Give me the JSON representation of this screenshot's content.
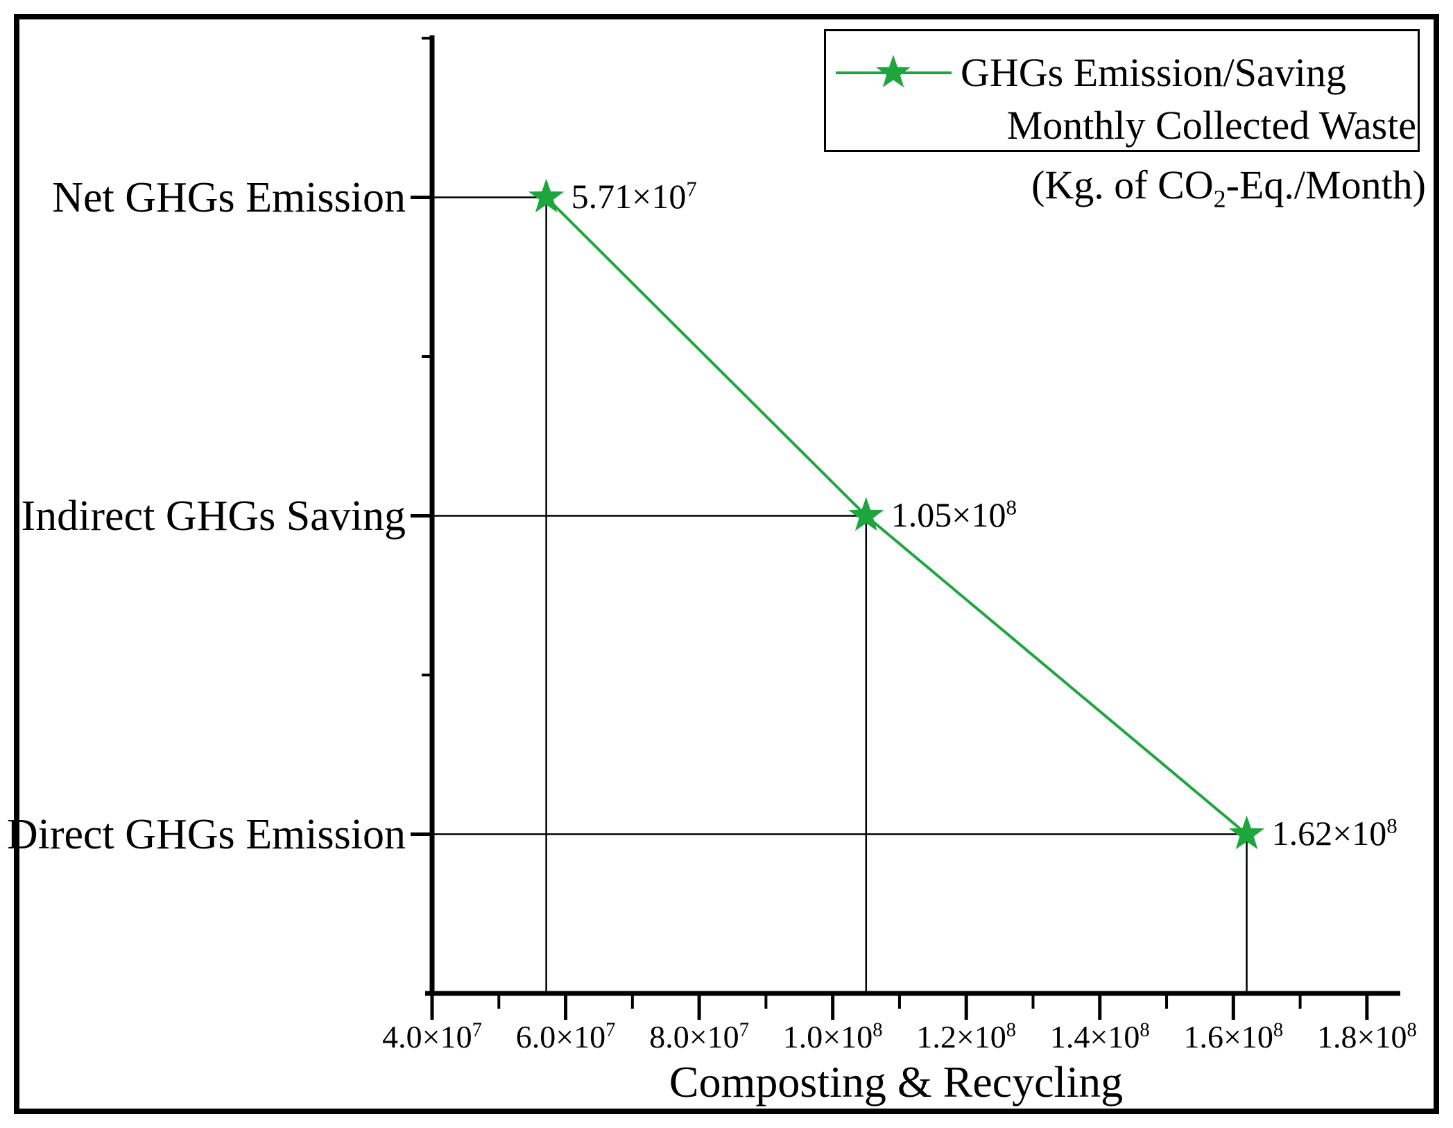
{
  "figure": {
    "background": "#ffffff",
    "border_color": "#000000"
  },
  "colors": {
    "series_green": "#1EA63E",
    "axis_black": "#000000"
  },
  "legend": {
    "line1": "GHGs Emission/Saving",
    "line2": "Monthly Collected Waste",
    "line3_pre": "(Kg. of CO",
    "line3_sub": "2",
    "line3_post": "-Eq./Month)",
    "marker_icon": "green-star-with-line"
  },
  "chart_data": {
    "type": "scatter",
    "title": "",
    "x_axis": {
      "title": "Composting & Recycling",
      "min": 40000000,
      "max": 185000000,
      "major_ticks": [
        {
          "value": 40000000,
          "label": "4.0×10^7"
        },
        {
          "value": 60000000,
          "label": "6.0×10^7"
        },
        {
          "value": 80000000,
          "label": "8.0×10^7"
        },
        {
          "value": 100000000,
          "label": "1.0×10^8"
        },
        {
          "value": 120000000,
          "label": "1.2×10^8"
        },
        {
          "value": 140000000,
          "label": "1.4×10^8"
        },
        {
          "value": 160000000,
          "label": "1.6×10^8"
        },
        {
          "value": 180000000,
          "label": "1.8×10^8"
        }
      ],
      "minor_tick_values": [
        50000000,
        70000000,
        90000000,
        110000000,
        130000000,
        150000000,
        170000000
      ]
    },
    "y_axis": {
      "type": "category",
      "categories_top_to_bottom": [
        "Net GHGs Emission",
        "Indirect GHGs Saving",
        "Direct GHGs Emission"
      ]
    },
    "series": [
      {
        "name": "GHGs Emission/Saving Monthly Collected Waste (Kg. of CO2-Eq./Month)",
        "color": "#1EA63E",
        "marker": "star",
        "points": [
          {
            "category": "Net GHGs Emission",
            "value": 57100000,
            "label": "5.71×10^7"
          },
          {
            "category": "Indirect GHGs Saving",
            "value": 105000000,
            "label": "1.05×10^8"
          },
          {
            "category": "Direct GHGs Emission",
            "value": 162000000,
            "label": "1.62×10^8"
          }
        ]
      }
    ],
    "grid": false,
    "legend_position": "top-right",
    "annotations": "thin black leader lines from each point to both axes"
  }
}
